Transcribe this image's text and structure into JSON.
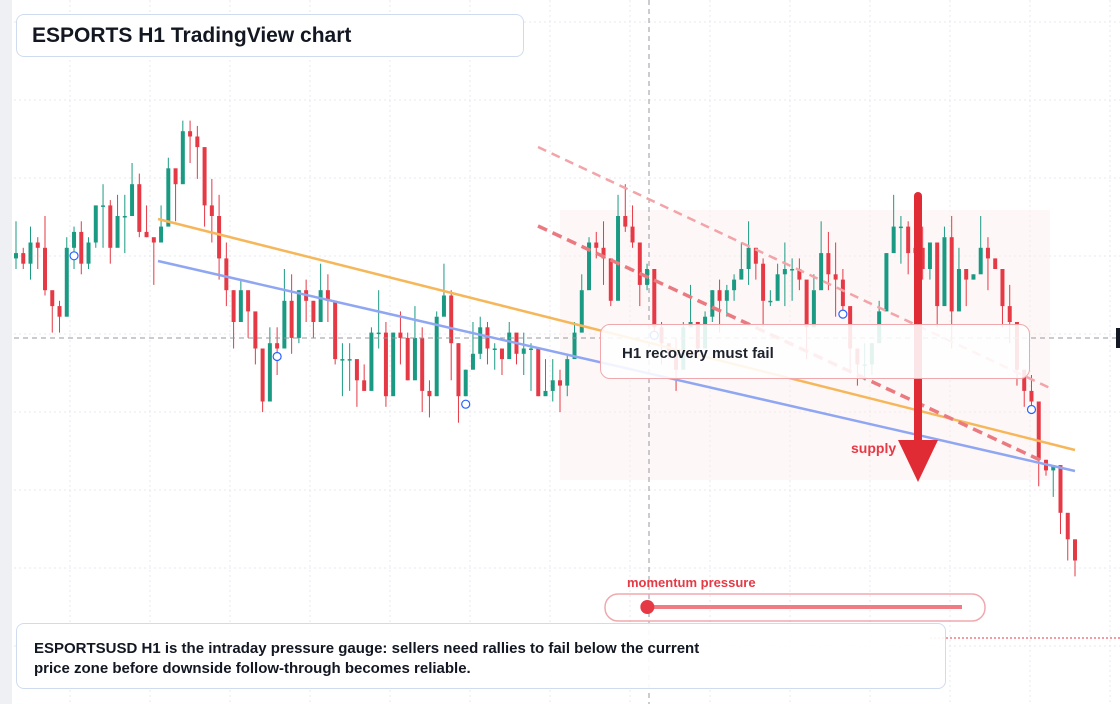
{
  "header": {
    "title": "ESPORTS H1 TradingView chart"
  },
  "annotations": {
    "note": "H1 recovery must fail",
    "supply": "supply",
    "pressure_label": "momentum pressure",
    "caption_line1": "ESPORTSUSD H1 is the intraday pressure gauge: sellers need rallies to fail below the current",
    "caption_line2": "price zone before downside follow-through becomes reliable."
  },
  "pressure_gauge": {
    "level": 0.08
  },
  "colors": {
    "up": "#1a9a83",
    "down": "#e53945",
    "trend_orange": "#f6b75a",
    "trend_blue": "#8fa6f2",
    "pressure": "#e53945",
    "grid": "#e6e9ef"
  },
  "chart_data": {
    "type": "candlestick",
    "series": [
      {
        "name": "",
        "ohlc": [
          [
            72,
            73,
            79,
            70
          ],
          [
            73,
            71,
            74,
            70
          ],
          [
            71,
            75,
            78,
            68
          ],
          [
            75,
            74,
            76,
            70
          ],
          [
            74,
            66,
            80,
            65
          ],
          [
            66,
            63,
            65,
            58
          ],
          [
            63,
            61,
            64,
            58
          ],
          [
            61,
            74,
            76,
            69
          ],
          [
            74,
            77,
            78,
            70
          ],
          [
            77,
            71,
            79,
            69
          ],
          [
            71,
            75,
            76,
            70
          ],
          [
            75,
            82,
            82,
            74
          ],
          [
            82,
            82,
            86,
            74
          ],
          [
            82,
            74,
            83,
            71
          ],
          [
            74,
            80,
            84,
            80
          ],
          [
            80,
            80,
            84,
            73
          ],
          [
            80,
            86,
            90,
            84
          ],
          [
            86,
            77,
            88,
            76
          ],
          [
            77,
            76,
            82,
            76
          ],
          [
            76,
            75,
            75,
            67
          ],
          [
            75,
            78,
            82,
            75
          ],
          [
            78,
            89,
            91,
            79
          ],
          [
            89,
            86,
            88,
            79
          ],
          [
            86,
            96,
            98,
            91
          ],
          [
            96,
            95,
            98,
            90
          ],
          [
            95,
            93,
            97,
            87
          ],
          [
            93,
            82,
            89,
            78
          ],
          [
            82,
            80,
            87,
            75
          ],
          [
            80,
            72,
            84,
            68
          ],
          [
            72,
            66,
            75,
            63
          ],
          [
            66,
            60,
            66,
            55
          ],
          [
            60,
            66,
            68,
            61
          ],
          [
            66,
            62,
            65,
            57
          ],
          [
            62,
            55,
            61,
            52
          ],
          [
            55,
            45,
            52,
            43
          ],
          [
            45,
            56,
            59,
            54
          ],
          [
            56,
            55,
            59,
            50
          ],
          [
            55,
            64,
            70,
            55
          ],
          [
            64,
            57,
            69,
            54
          ],
          [
            57,
            66,
            66,
            56
          ],
          [
            66,
            64,
            68,
            60
          ],
          [
            64,
            60,
            64,
            57
          ],
          [
            60,
            66,
            71,
            63
          ],
          [
            66,
            64,
            69,
            60
          ],
          [
            64,
            53,
            63,
            52
          ],
          [
            53,
            53,
            56,
            46
          ],
          [
            53,
            53,
            56,
            47
          ],
          [
            53,
            49,
            52,
            44
          ],
          [
            49,
            47,
            52,
            47
          ],
          [
            47,
            58,
            59,
            56
          ],
          [
            58,
            58,
            66,
            55
          ],
          [
            58,
            46,
            60,
            44
          ],
          [
            46,
            58,
            58,
            51
          ],
          [
            58,
            57,
            62,
            52
          ],
          [
            57,
            49,
            58,
            49
          ],
          [
            49,
            57,
            63,
            56
          ],
          [
            57,
            47,
            59,
            43
          ],
          [
            47,
            46,
            49,
            42
          ],
          [
            46,
            61,
            62,
            61
          ],
          [
            61,
            65,
            71,
            63
          ],
          [
            65,
            56,
            66,
            49
          ],
          [
            56,
            46,
            56,
            41
          ],
          [
            46,
            51,
            51,
            46
          ],
          [
            51,
            54,
            60,
            52
          ],
          [
            54,
            59,
            61,
            53
          ],
          [
            59,
            55,
            60,
            52
          ],
          [
            55,
            55,
            56,
            51
          ],
          [
            55,
            53,
            55,
            50
          ],
          [
            53,
            58,
            60,
            55
          ],
          [
            58,
            54,
            57,
            52
          ],
          [
            54,
            55,
            58,
            50
          ],
          [
            55,
            55,
            56,
            47
          ],
          [
            55,
            46,
            55,
            46
          ],
          [
            46,
            47,
            53,
            47
          ],
          [
            47,
            49,
            53,
            45
          ],
          [
            49,
            48,
            51,
            43
          ],
          [
            48,
            53,
            54,
            46
          ],
          [
            53,
            58,
            60,
            55
          ],
          [
            58,
            66,
            69,
            58
          ],
          [
            66,
            75,
            76,
            75
          ],
          [
            75,
            74,
            77,
            72
          ],
          [
            74,
            72,
            79,
            67
          ],
          [
            72,
            64,
            70,
            63
          ],
          [
            64,
            80,
            84,
            77
          ],
          [
            80,
            78,
            86,
            77
          ],
          [
            78,
            75,
            82,
            74
          ],
          [
            75,
            67,
            74,
            63
          ],
          [
            67,
            70,
            71,
            66
          ],
          [
            70,
            59,
            66,
            57
          ],
          [
            59,
            56,
            60,
            52
          ],
          [
            56,
            54,
            55,
            53
          ],
          [
            54,
            51,
            57,
            47
          ],
          [
            51,
            59,
            60,
            56
          ],
          [
            59,
            60,
            67,
            60
          ],
          [
            60,
            55,
            60,
            53
          ],
          [
            55,
            61,
            62,
            57
          ],
          [
            61,
            66,
            66,
            60
          ],
          [
            66,
            64,
            68,
            58
          ],
          [
            64,
            66,
            67,
            61
          ],
          [
            66,
            68,
            69,
            64
          ],
          [
            68,
            70,
            75,
            70
          ],
          [
            70,
            74,
            79,
            67
          ],
          [
            74,
            71,
            74,
            68
          ],
          [
            71,
            64,
            72,
            59
          ],
          [
            64,
            64,
            66,
            63
          ],
          [
            64,
            69,
            71,
            66
          ],
          [
            69,
            70,
            75,
            63
          ],
          [
            70,
            70,
            72,
            64
          ],
          [
            70,
            68,
            72,
            66
          ],
          [
            68,
            59,
            65,
            53
          ],
          [
            59,
            66,
            69,
            66
          ],
          [
            66,
            73,
            79,
            67
          ],
          [
            73,
            69,
            77,
            66
          ],
          [
            69,
            68,
            75,
            61
          ],
          [
            68,
            63,
            70,
            61
          ],
          [
            63,
            55,
            62,
            51
          ],
          [
            55,
            52,
            54,
            48
          ],
          [
            52,
            52,
            56,
            49
          ],
          [
            52,
            56,
            56,
            50
          ],
          [
            56,
            62,
            64,
            59
          ],
          [
            62,
            73,
            73,
            66
          ],
          [
            73,
            78,
            84,
            76
          ],
          [
            78,
            78,
            80,
            71
          ],
          [
            78,
            73,
            79,
            69
          ],
          [
            73,
            74,
            76,
            69
          ],
          [
            74,
            70,
            78,
            68
          ],
          [
            70,
            75,
            75,
            68
          ],
          [
            75,
            63,
            74,
            59
          ],
          [
            63,
            76,
            78,
            76
          ],
          [
            76,
            62,
            80,
            55
          ],
          [
            62,
            70,
            74,
            62
          ],
          [
            70,
            68,
            70,
            63
          ],
          [
            68,
            69,
            69,
            68
          ],
          [
            69,
            74,
            80,
            73
          ],
          [
            74,
            72,
            76,
            66
          ],
          [
            72,
            70,
            72,
            70
          ],
          [
            70,
            63,
            67,
            59
          ],
          [
            63,
            60,
            67,
            56
          ],
          [
            60,
            51,
            57,
            48
          ],
          [
            51,
            47,
            50,
            44
          ],
          [
            47,
            45,
            50,
            44
          ],
          [
            45,
            34,
            42,
            29
          ],
          [
            34,
            32,
            34,
            31
          ],
          [
            32,
            33,
            33,
            27
          ],
          [
            33,
            24,
            33,
            20
          ],
          [
            24,
            19,
            23,
            15
          ],
          [
            19,
            15,
            17,
            12
          ]
        ]
      }
    ],
    "annotation_note": "H1 recovery must fail",
    "grid": true
  }
}
